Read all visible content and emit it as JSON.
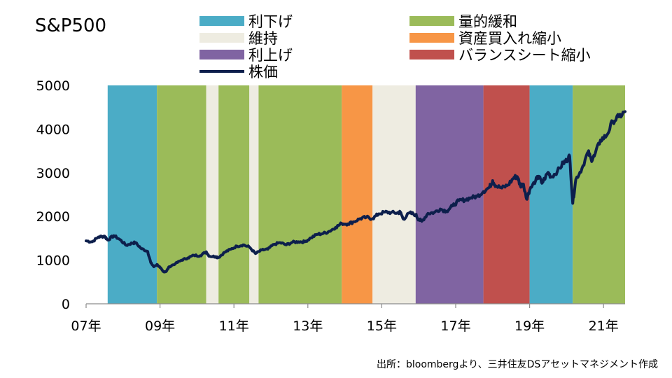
{
  "chart_data": {
    "type": "line",
    "title": "S&P500",
    "source": "出所：bloombergより、三井住友DSアセットマネジメント作成",
    "x_range": [
      "2007-01",
      "2021-08"
    ],
    "ylim": [
      0,
      5000
    ],
    "yticks": [
      "0",
      "1000",
      "2000",
      "3000",
      "4000",
      "5000"
    ],
    "xticks": [
      {
        "label": "07年",
        "year": 2007
      },
      {
        "label": "09年",
        "year": 2009
      },
      {
        "label": "11年",
        "year": 2011
      },
      {
        "label": "13年",
        "year": 2013
      },
      {
        "label": "15年",
        "year": 2015
      },
      {
        "label": "17年",
        "year": 2017
      },
      {
        "label": "19年",
        "year": 2019
      },
      {
        "label": "21年",
        "year": 2021
      }
    ],
    "regime_legend": [
      {
        "key": "cut",
        "label": "利下げ",
        "color": "#4bacc6"
      },
      {
        "key": "qe",
        "label": "量的緩和",
        "color": "#9bbb59"
      },
      {
        "key": "hold",
        "label": "維持",
        "color": "#eeece1"
      },
      {
        "key": "taper",
        "label": "資産買入れ縮小",
        "color": "#f79646"
      },
      {
        "key": "hike",
        "label": "利上げ",
        "color": "#8064a2"
      },
      {
        "key": "shrink",
        "label": "バランスシート縮小",
        "color": "#c0504d"
      }
    ],
    "line_legend": {
      "label": "株価",
      "color": "#0d1f4c"
    },
    "regimes": [
      {
        "key": "cut",
        "start": "2007-08",
        "end": "2008-12"
      },
      {
        "key": "qe",
        "start": "2008-12",
        "end": "2010-04"
      },
      {
        "key": "hold",
        "start": "2010-04",
        "end": "2010-08"
      },
      {
        "key": "qe",
        "start": "2010-08",
        "end": "2011-06"
      },
      {
        "key": "hold",
        "start": "2011-06",
        "end": "2011-09"
      },
      {
        "key": "qe",
        "start": "2011-09",
        "end": "2013-12"
      },
      {
        "key": "taper",
        "start": "2013-12",
        "end": "2014-10"
      },
      {
        "key": "hold",
        "start": "2014-10",
        "end": "2015-12"
      },
      {
        "key": "hike",
        "start": "2015-12",
        "end": "2017-10"
      },
      {
        "key": "shrink",
        "start": "2017-10",
        "end": "2019-01"
      },
      {
        "key": "cut",
        "start": "2019-01",
        "end": "2020-03"
      },
      {
        "key": "qe",
        "start": "2020-03",
        "end": "2021-08"
      }
    ],
    "series": [
      {
        "label": "株価",
        "points": [
          [
            "2007-01",
            1440
          ],
          [
            "2007-03",
            1420
          ],
          [
            "2007-05",
            1530
          ],
          [
            "2007-07",
            1550
          ],
          [
            "2007-08",
            1460
          ],
          [
            "2007-10",
            1560
          ],
          [
            "2007-12",
            1470
          ],
          [
            "2008-02",
            1340
          ],
          [
            "2008-04",
            1390
          ],
          [
            "2008-05",
            1400
          ],
          [
            "2008-07",
            1260
          ],
          [
            "2008-09",
            1200
          ],
          [
            "2008-10",
            940
          ],
          [
            "2008-11",
            850
          ],
          [
            "2008-12",
            900
          ],
          [
            "2009-01",
            830
          ],
          [
            "2009-02",
            740
          ],
          [
            "2009-03",
            740
          ],
          [
            "2009-04",
            850
          ],
          [
            "2009-06",
            920
          ],
          [
            "2009-08",
            1000
          ],
          [
            "2009-10",
            1050
          ],
          [
            "2009-12",
            1110
          ],
          [
            "2010-02",
            1100
          ],
          [
            "2010-04",
            1190
          ],
          [
            "2010-05",
            1090
          ],
          [
            "2010-07",
            1080
          ],
          [
            "2010-08",
            1060
          ],
          [
            "2010-10",
            1180
          ],
          [
            "2010-12",
            1250
          ],
          [
            "2011-02",
            1320
          ],
          [
            "2011-04",
            1350
          ],
          [
            "2011-06",
            1300
          ],
          [
            "2011-08",
            1150
          ],
          [
            "2011-10",
            1230
          ],
          [
            "2011-12",
            1250
          ],
          [
            "2012-02",
            1360
          ],
          [
            "2012-04",
            1400
          ],
          [
            "2012-06",
            1350
          ],
          [
            "2012-08",
            1410
          ],
          [
            "2012-10",
            1420
          ],
          [
            "2012-12",
            1420
          ],
          [
            "2013-02",
            1510
          ],
          [
            "2013-04",
            1590
          ],
          [
            "2013-06",
            1610
          ],
          [
            "2013-08",
            1660
          ],
          [
            "2013-10",
            1750
          ],
          [
            "2013-12",
            1840
          ],
          [
            "2014-02",
            1830
          ],
          [
            "2014-04",
            1880
          ],
          [
            "2014-06",
            1950
          ],
          [
            "2014-08",
            1980
          ],
          [
            "2014-10",
            1950
          ],
          [
            "2014-12",
            2060
          ],
          [
            "2015-02",
            2100
          ],
          [
            "2015-04",
            2090
          ],
          [
            "2015-06",
            2080
          ],
          [
            "2015-07",
            2100
          ],
          [
            "2015-08",
            1940
          ],
          [
            "2015-10",
            2080
          ],
          [
            "2015-12",
            2040
          ],
          [
            "2016-01",
            1930
          ],
          [
            "2016-02",
            1890
          ],
          [
            "2016-04",
            2070
          ],
          [
            "2016-06",
            2090
          ],
          [
            "2016-08",
            2170
          ],
          [
            "2016-10",
            2120
          ],
          [
            "2016-12",
            2240
          ],
          [
            "2017-02",
            2360
          ],
          [
            "2017-04",
            2380
          ],
          [
            "2017-06",
            2430
          ],
          [
            "2017-08",
            2460
          ],
          [
            "2017-10",
            2570
          ],
          [
            "2017-12",
            2670
          ],
          [
            "2018-01",
            2820
          ],
          [
            "2018-02",
            2700
          ],
          [
            "2018-04",
            2650
          ],
          [
            "2018-06",
            2720
          ],
          [
            "2018-08",
            2900
          ],
          [
            "2018-09",
            2910
          ],
          [
            "2018-10",
            2700
          ],
          [
            "2018-11",
            2740
          ],
          [
            "2018-12",
            2400
          ],
          [
            "2019-01",
            2600
          ],
          [
            "2019-03",
            2830
          ],
          [
            "2019-04",
            2920
          ],
          [
            "2019-05",
            2760
          ],
          [
            "2019-07",
            3010
          ],
          [
            "2019-08",
            2900
          ],
          [
            "2019-10",
            3030
          ],
          [
            "2019-12",
            3230
          ],
          [
            "2020-01",
            3280
          ],
          [
            "2020-02",
            3380
          ],
          [
            "2020-03",
            2300
          ],
          [
            "2020-04",
            2850
          ],
          [
            "2020-06",
            3100
          ],
          [
            "2020-08",
            3480
          ],
          [
            "2020-09",
            3300
          ],
          [
            "2020-10",
            3380
          ],
          [
            "2020-12",
            3750
          ],
          [
            "2021-02",
            3850
          ],
          [
            "2021-04",
            4180
          ],
          [
            "2021-06",
            4280
          ],
          [
            "2021-08",
            4400
          ]
        ]
      }
    ]
  }
}
